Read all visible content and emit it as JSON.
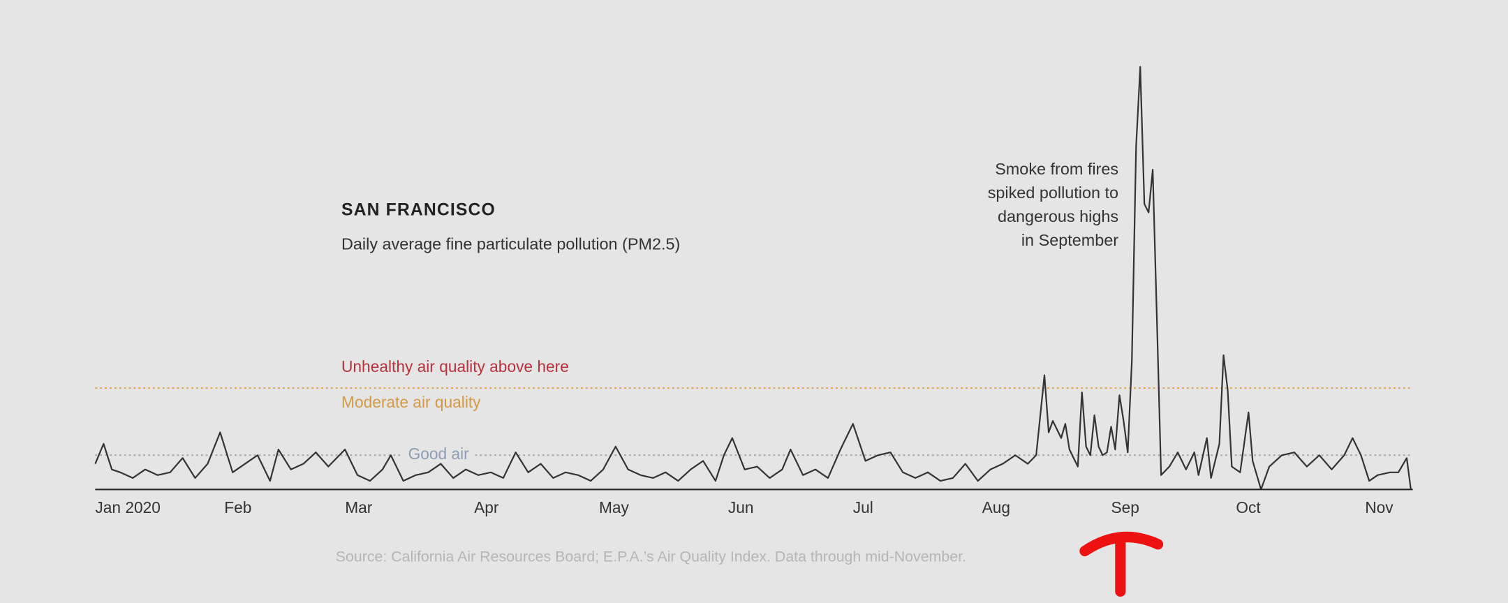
{
  "chart_data": {
    "type": "line",
    "title": "SAN FRANCISCO",
    "subtitle": "Daily average fine particulate pollution (PM2.5)",
    "annotation": [
      "Smoke from fires",
      "spiked pollution to",
      "dangerous highs",
      "in September"
    ],
    "source": "Source: California Air Resources Board; E.P.A.’s Air Quality Index. Data through mid-November.",
    "color": "#333333",
    "x": [
      0,
      2,
      4,
      6,
      9,
      12,
      15,
      18,
      21,
      24,
      27,
      30,
      33,
      36,
      39,
      42,
      44,
      47,
      50,
      53,
      56,
      60,
      63,
      66,
      69,
      71,
      74,
      77,
      80,
      83,
      86,
      89,
      92,
      95,
      98,
      101,
      104,
      107,
      110,
      113,
      116,
      119,
      122,
      125,
      128,
      131,
      134,
      137,
      140,
      143,
      146,
      149,
      151,
      153,
      156,
      159,
      162,
      165,
      167,
      170,
      173,
      176,
      179,
      182,
      185,
      188,
      191,
      194,
      197,
      200,
      203,
      206,
      209,
      212,
      215,
      218,
      221,
      224,
      226,
      228,
      229,
      230,
      232,
      233,
      234,
      236,
      237,
      238,
      239,
      240,
      241,
      242,
      243,
      244,
      245,
      246,
      247,
      248,
      249,
      250,
      251,
      252,
      253,
      254,
      255,
      256,
      258,
      260,
      262,
      264,
      265,
      267,
      268,
      270,
      271,
      272,
      273,
      275,
      277,
      278,
      280,
      282,
      285,
      288,
      291,
      294,
      297,
      300,
      302,
      304,
      306,
      308,
      311,
      313,
      315,
      316
    ],
    "values": [
      9,
      16,
      7,
      6,
      4,
      7,
      5,
      6,
      11,
      4,
      9,
      20,
      6,
      9,
      12,
      3,
      14,
      7,
      9,
      13,
      8,
      14,
      5,
      3,
      7,
      12,
      3,
      5,
      6,
      9,
      4,
      7,
      5,
      6,
      4,
      13,
      6,
      9,
      4,
      6,
      5,
      3,
      7,
      15,
      7,
      5,
      4,
      6,
      3,
      7,
      10,
      3,
      12,
      18,
      7,
      8,
      4,
      7,
      14,
      5,
      7,
      4,
      14,
      23,
      10,
      12,
      13,
      6,
      4,
      6,
      3,
      4,
      9,
      3,
      7,
      9,
      12,
      9,
      12,
      40,
      20,
      24,
      18,
      23,
      14,
      8,
      34,
      15,
      12,
      26,
      15,
      12,
      13,
      22,
      14,
      33,
      24,
      13,
      45,
      120,
      148,
      100,
      97,
      112,
      60,
      5,
      8,
      13,
      7,
      13,
      5,
      18,
      4,
      16,
      47,
      35,
      8,
      6,
      27,
      10,
      0,
      8,
      12,
      13,
      8,
      12,
      7,
      12,
      18,
      12,
      3,
      5,
      6,
      6,
      11,
      0
    ],
    "xlim": [
      0,
      316
    ],
    "ylim": [
      0,
      150
    ],
    "xticks": [
      {
        "value": 0,
        "label": "Jan 2020"
      },
      {
        "value": 31,
        "label": "Feb"
      },
      {
        "value": 60,
        "label": "Mar"
      },
      {
        "value": 91,
        "label": "Apr"
      },
      {
        "value": 121,
        "label": "May"
      },
      {
        "value": 152,
        "label": "Jun"
      },
      {
        "value": 182,
        "label": "Jul"
      },
      {
        "value": 213,
        "label": "Aug"
      },
      {
        "value": 244,
        "label": "Sep"
      },
      {
        "value": 274,
        "label": "Oct"
      },
      {
        "value": 305,
        "label": "Nov"
      }
    ],
    "thresholds": [
      {
        "value": 35.5,
        "label_above": "Unhealthy air quality above here",
        "label_below": "Moderate air quality",
        "color": "#e0a556"
      },
      {
        "value": 12,
        "label": "Good air",
        "color": "#a8a8a8"
      }
    ]
  }
}
